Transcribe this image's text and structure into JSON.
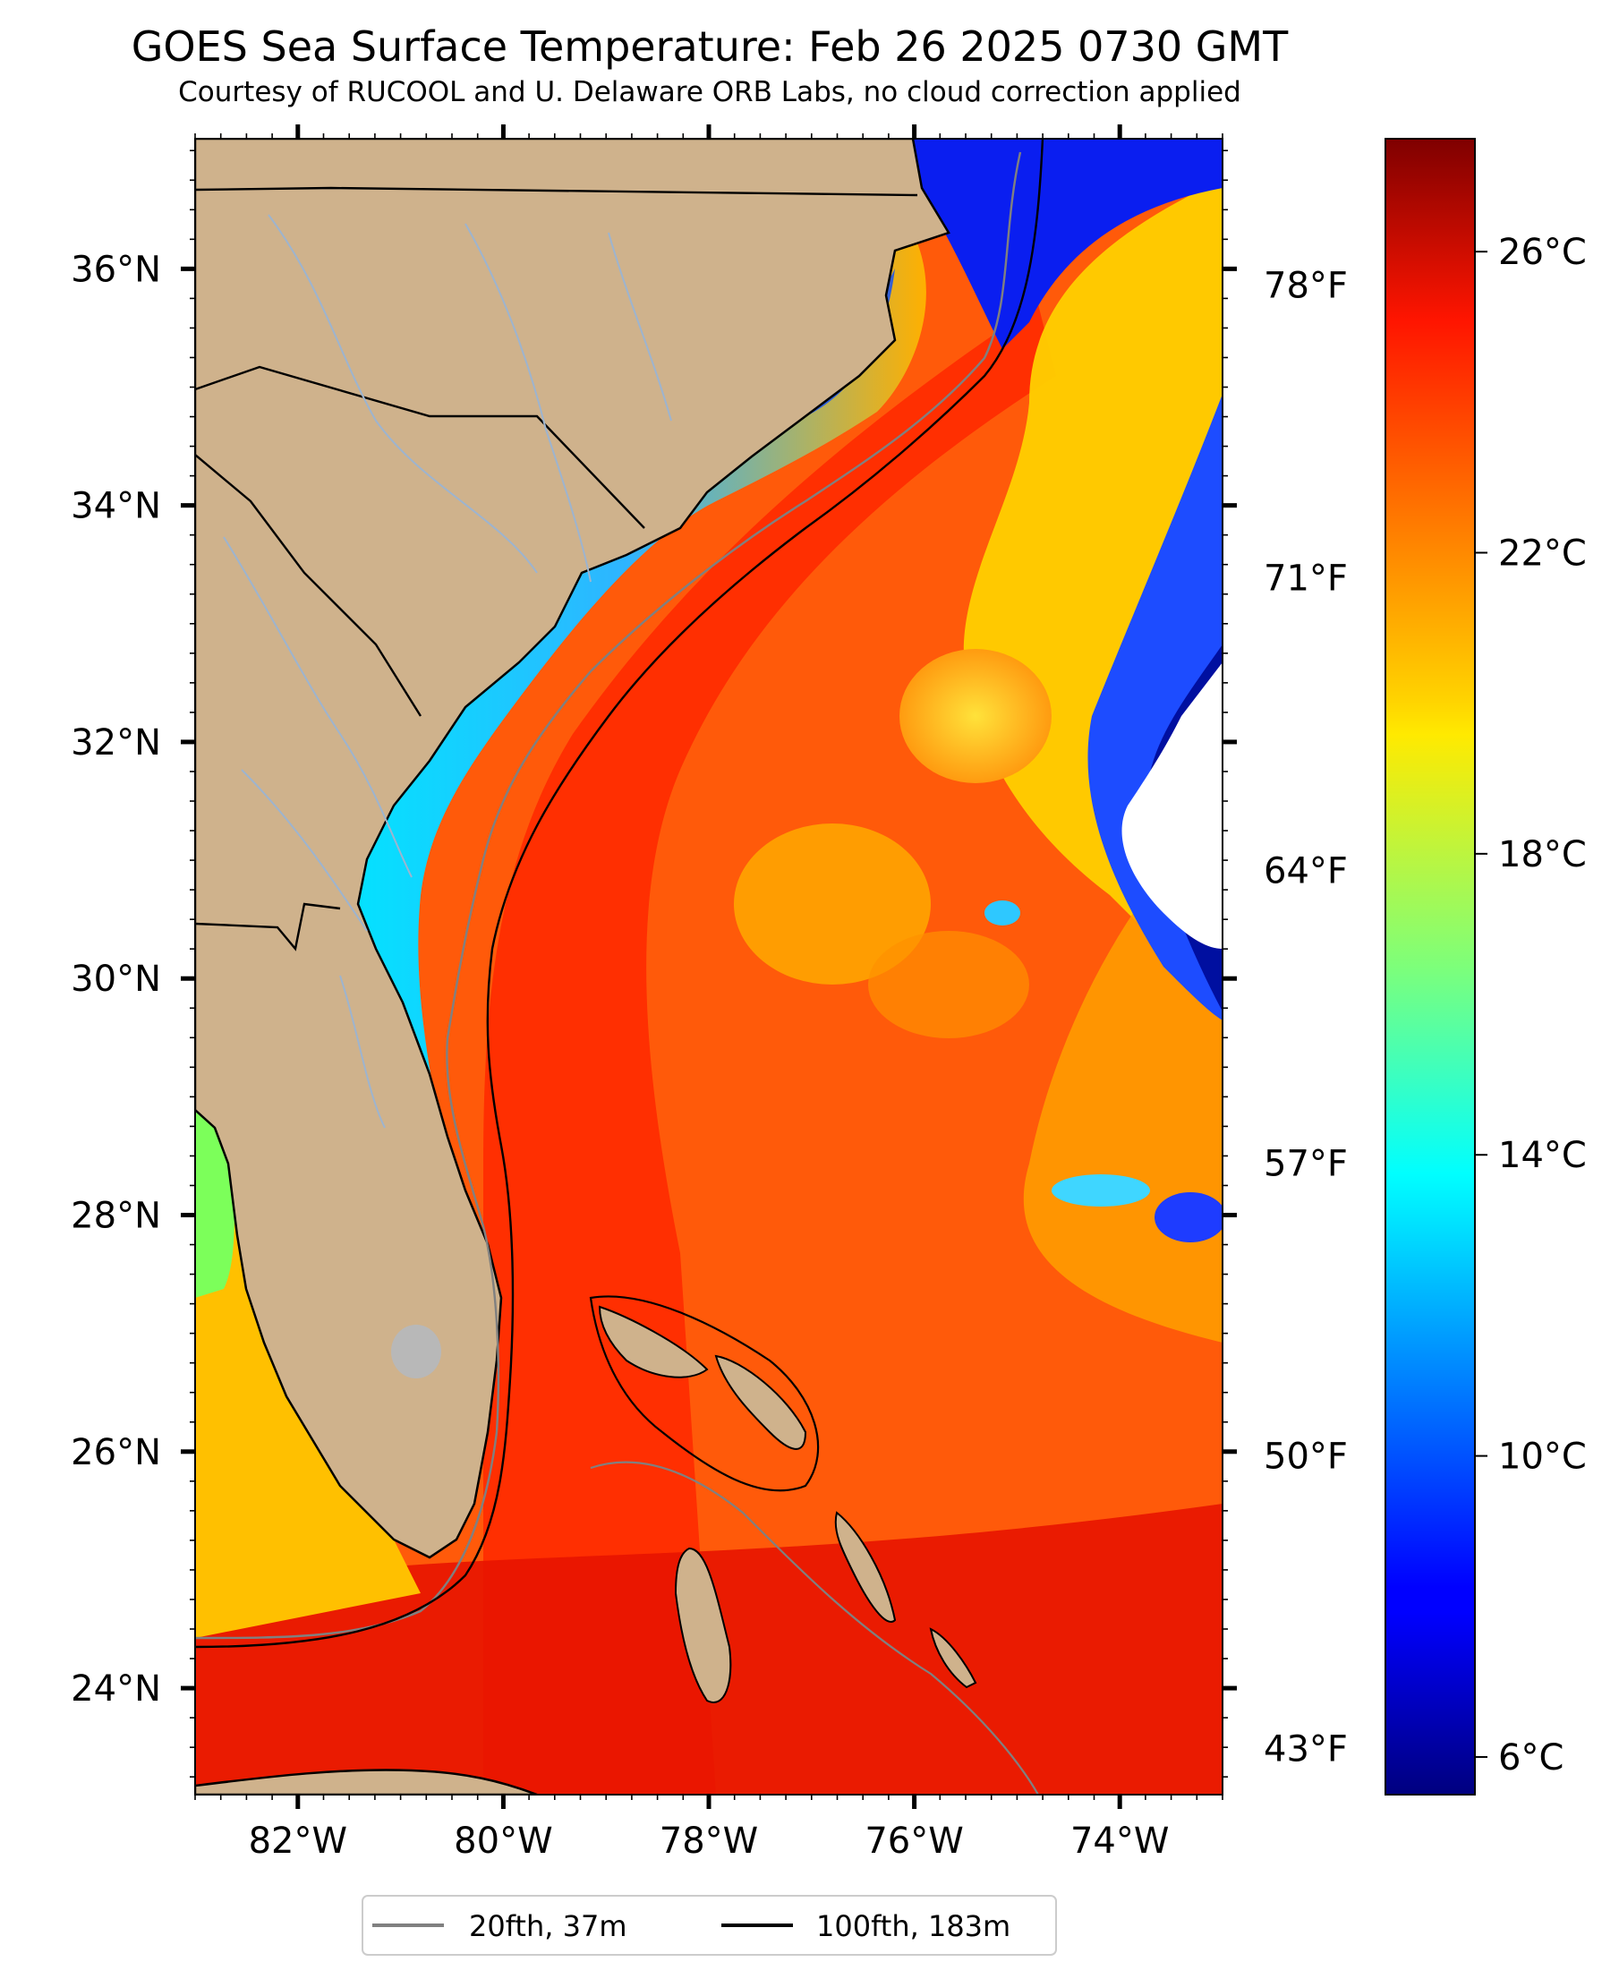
{
  "title": "GOES Sea Surface Temperature: Feb 26 2025 0730 GMT",
  "subtitle": "Courtesy of RUCOOL and U. Delaware ORB Labs, no cloud correction applied",
  "map": {
    "lon_range": [
      -83,
      -73
    ],
    "lat_range": [
      23.1,
      37.1
    ],
    "lon_ticks": [
      {
        "value": -82,
        "label": "82°W"
      },
      {
        "value": -80,
        "label": "80°W"
      },
      {
        "value": -78,
        "label": "78°W"
      },
      {
        "value": -76,
        "label": "76°W"
      },
      {
        "value": -74,
        "label": "74°W"
      }
    ],
    "lat_ticks": [
      {
        "value": 36,
        "label": "36°N"
      },
      {
        "value": 34,
        "label": "34°N"
      },
      {
        "value": 32,
        "label": "32°N"
      },
      {
        "value": 30,
        "label": "30°N"
      },
      {
        "value": 28,
        "label": "28°N"
      },
      {
        "value": 26,
        "label": "26°N"
      },
      {
        "value": 24,
        "label": "24°N"
      }
    ],
    "fahrenheit_ticks": [
      {
        "value": 78,
        "label": "78°F"
      },
      {
        "value": 71,
        "label": "71°F"
      },
      {
        "value": 64,
        "label": "64°F"
      },
      {
        "value": 57,
        "label": "57°F"
      },
      {
        "value": 50,
        "label": "50°F"
      },
      {
        "value": 43,
        "label": "43°F"
      }
    ],
    "land_color": "#cfb28c",
    "river_color": "#9db4cf"
  },
  "colorbar": {
    "range_c": [
      5.5,
      27.5
    ],
    "ticks": [
      {
        "value": 26,
        "label": "26°C"
      },
      {
        "value": 22,
        "label": "22°C"
      },
      {
        "value": 18,
        "label": "18°C"
      },
      {
        "value": 14,
        "label": "14°C"
      },
      {
        "value": 10,
        "label": "10°C"
      },
      {
        "value": 6,
        "label": "6°C"
      }
    ],
    "colormap": "jet"
  },
  "legend": {
    "items": [
      {
        "label": "20fth, 37m",
        "color": "#808080"
      },
      {
        "label": "100fth, 183m",
        "color": "#000000"
      }
    ]
  }
}
